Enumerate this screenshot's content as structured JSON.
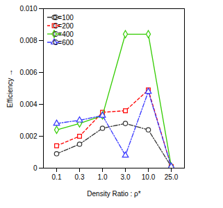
{
  "chart_data": {
    "type": "line",
    "x_label": "Density Ratio : ρ*",
    "y_label": "Efficiency",
    "categories": [
      "0.1",
      "0.3",
      "1.0",
      "3.0",
      "10.0",
      "25.0"
    ],
    "series": [
      {
        "name": "C=100",
        "color": "#333333",
        "marker": "circle",
        "line_style": "dashdot",
        "values": [
          0.0009,
          0.0015,
          0.0025,
          0.0028,
          0.0024,
          0.0001
        ]
      },
      {
        "name": "C=200",
        "color": "#ff0000",
        "marker": "square",
        "line_style": "dashed",
        "values": [
          0.0014,
          0.002,
          0.0035,
          0.0036,
          0.0049,
          0.0001
        ]
      },
      {
        "name": "C=400",
        "color": "#33cc00",
        "marker": "diamond",
        "line_style": "solid",
        "values": [
          0.0024,
          0.0028,
          0.0033,
          0.0084,
          0.0084,
          0.0001
        ]
      },
      {
        "name": "C=600",
        "color": "#3333ff",
        "marker": "triangle",
        "line_style": "dashdot",
        "values": [
          0.0028,
          0.003,
          0.0033,
          0.0008,
          0.0048,
          0.0001
        ]
      }
    ],
    "ylim": [
      0,
      0.01
    ],
    "yticks": [
      0,
      0.002,
      0.004,
      0.006,
      0.008,
      {
        "value": 0.01,
        "label": "0.010"
      }
    ],
    "grid": false,
    "legend": "top-left"
  }
}
